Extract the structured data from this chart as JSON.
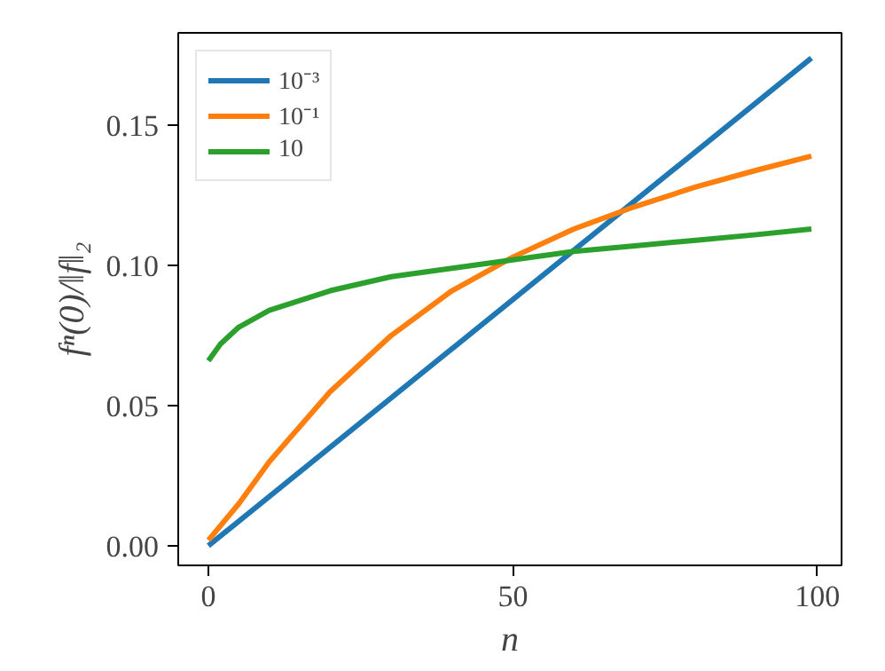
{
  "chart_data": {
    "type": "line",
    "xlabel": "n",
    "ylabel": "fⁿ(0)/‖f‖₂",
    "xlim": [
      -4.95,
      103.95
    ],
    "ylim": [
      -0.007,
      0.183
    ],
    "xticks": [
      0,
      50,
      100
    ],
    "yticks": [
      {
        "value": 0,
        "label": "0.00"
      },
      {
        "value": 0.05,
        "label": "0.05"
      },
      {
        "value": 0.1,
        "label": "0.10"
      },
      {
        "value": 0.15,
        "label": "0.15"
      }
    ],
    "grid": false,
    "legend": "top left",
    "line_style": "solid",
    "marker": "none",
    "series": [
      {
        "name": "10⁻³",
        "color": "#1f77b4",
        "x": [
          0,
          99
        ],
        "values": [
          0,
          0.174
        ]
      },
      {
        "name": "10⁻¹",
        "color": "#ff7f0e",
        "x": [
          0,
          5,
          10,
          20,
          30,
          40,
          50,
          60,
          70,
          80,
          90,
          99
        ],
        "values": [
          0.002,
          0.015,
          0.03,
          0.055,
          0.075,
          0.091,
          0.103,
          0.113,
          0.121,
          0.128,
          0.134,
          0.139
        ]
      },
      {
        "name": "10",
        "color": "#2ca02c",
        "x": [
          0,
          2,
          5,
          10,
          20,
          30,
          40,
          50,
          60,
          70,
          80,
          90,
          99
        ],
        "values": [
          0.066,
          0.072,
          0.078,
          0.084,
          0.091,
          0.096,
          0.099,
          0.102,
          0.105,
          0.107,
          0.109,
          0.111,
          0.113
        ]
      }
    ]
  }
}
